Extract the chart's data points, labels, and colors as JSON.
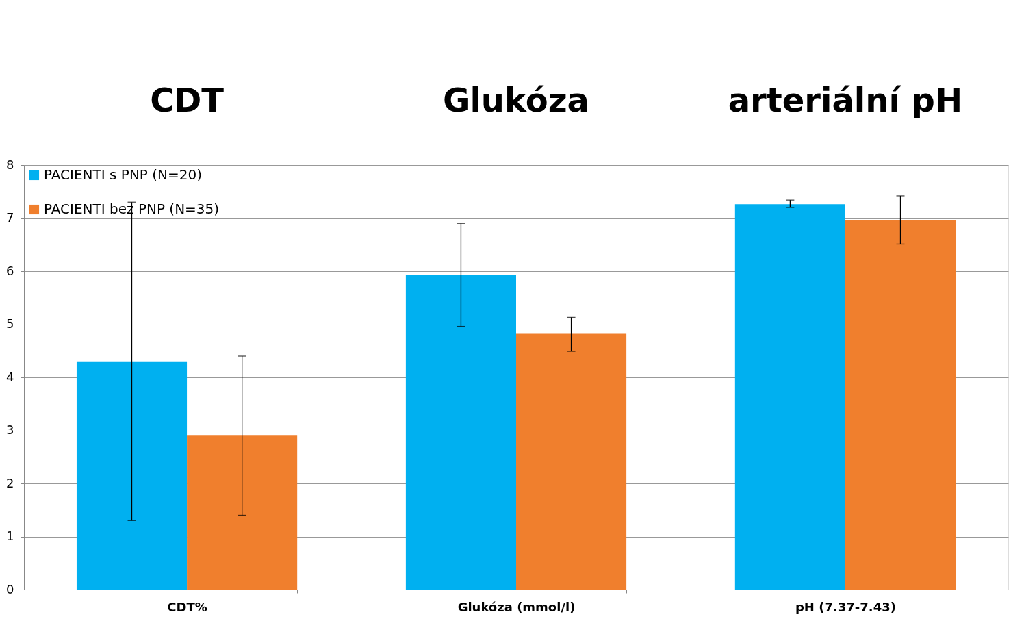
{
  "chart_data": {
    "type": "bar",
    "categories": [
      "CDT%",
      "Glukóza (mmol/l)",
      "pH (7.37-7.43)"
    ],
    "series": [
      {
        "name": "PACIENTI s PNP (N=20)",
        "color": "#00b0f0",
        "values": [
          4.3,
          5.93,
          7.26
        ],
        "errors": [
          [
            1.3,
            7.3
          ],
          [
            4.96,
            6.9
          ],
          [
            7.2,
            7.34
          ]
        ]
      },
      {
        "name": "PACIENTI bez PNP (N=35)",
        "color": "#f07f2d",
        "values": [
          2.9,
          4.82,
          6.96
        ],
        "errors": [
          [
            1.4,
            4.4
          ],
          [
            4.49,
            5.13
          ],
          [
            6.51,
            7.42
          ]
        ]
      }
    ],
    "annotations": [
      "CDT",
      "Glukóza",
      "arteriální pH"
    ],
    "ylim": [
      0,
      8
    ],
    "yticks": [
      0,
      1,
      2,
      3,
      4,
      5,
      6,
      7,
      8
    ],
    "grid": "y",
    "legend": "top left"
  }
}
